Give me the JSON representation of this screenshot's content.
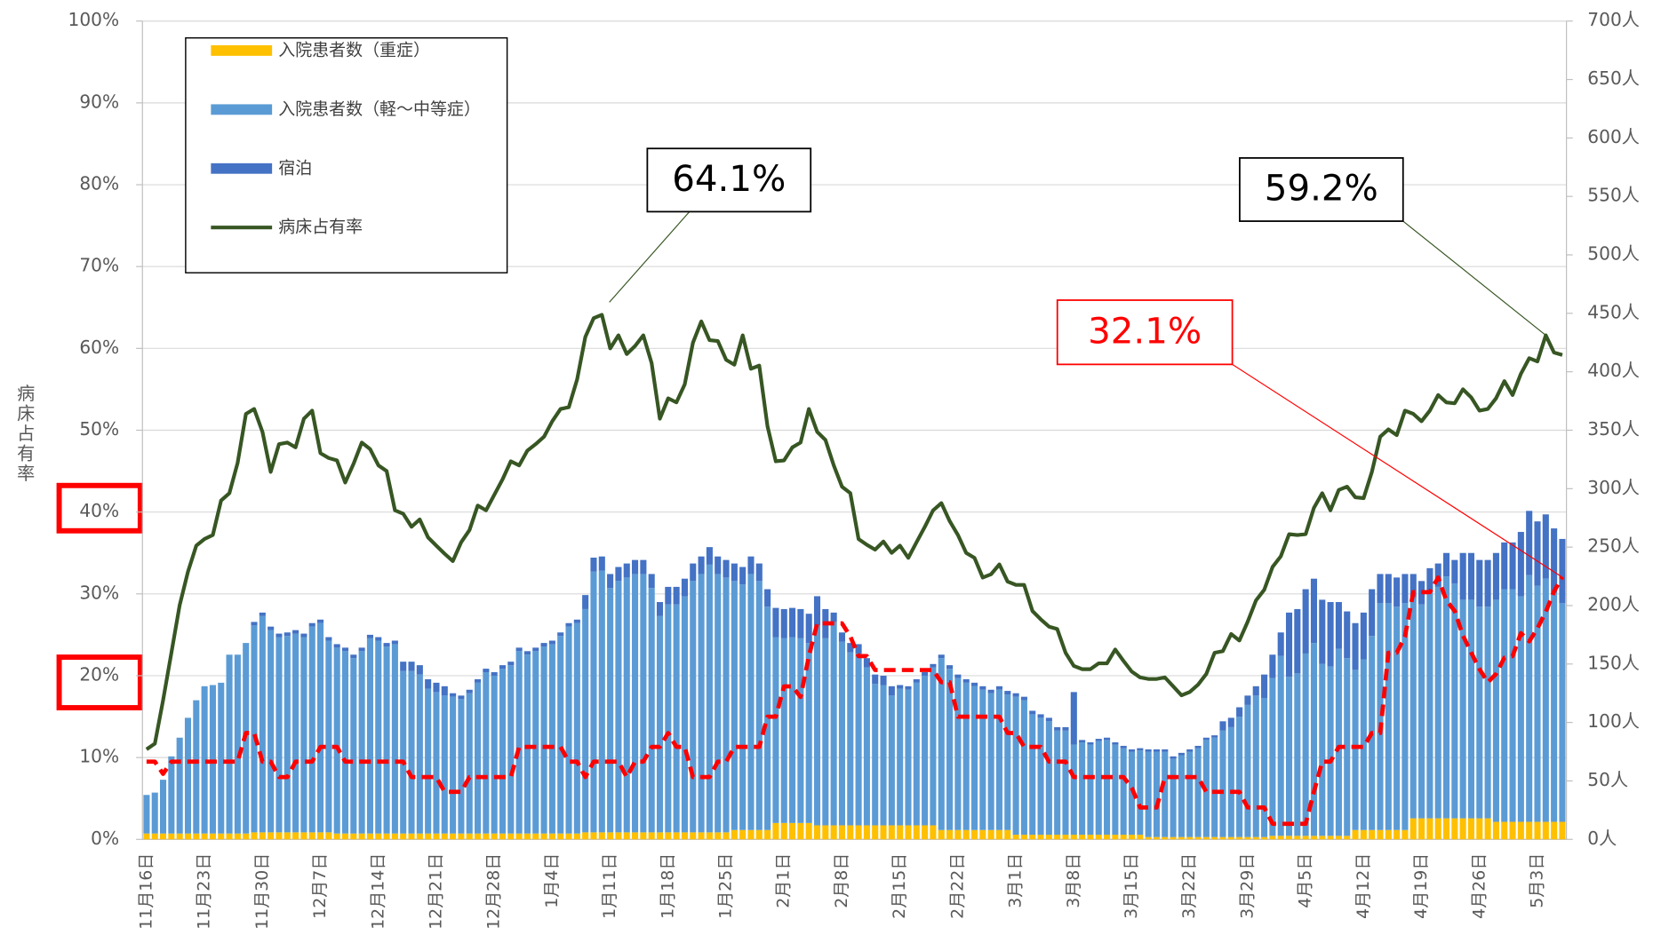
{
  "chart_data": {
    "type": "bar",
    "y_label": "病床占有率",
    "categories": [
      "11月16日",
      null,
      null,
      null,
      null,
      null,
      null,
      "11月23日",
      null,
      null,
      null,
      null,
      null,
      null,
      "11月30日",
      null,
      null,
      null,
      null,
      null,
      null,
      "12月7日",
      null,
      null,
      null,
      null,
      null,
      null,
      "12月14日",
      null,
      null,
      null,
      null,
      null,
      null,
      "12月21日",
      null,
      null,
      null,
      null,
      null,
      null,
      "12月28日",
      null,
      null,
      null,
      null,
      null,
      null,
      "1月4日",
      null,
      null,
      null,
      null,
      null,
      null,
      "1月11日",
      null,
      null,
      null,
      null,
      null,
      null,
      "1月18日",
      null,
      null,
      null,
      null,
      null,
      null,
      "1月25日",
      null,
      null,
      null,
      null,
      null,
      null,
      "2月1日",
      null,
      null,
      null,
      null,
      null,
      null,
      "2月8日",
      null,
      null,
      null,
      null,
      null,
      null,
      "2月15日",
      null,
      null,
      null,
      null,
      null,
      null,
      "2月22日",
      null,
      null,
      null,
      null,
      null,
      null,
      "3月1日",
      null,
      null,
      null,
      null,
      null,
      null,
      "3月8日",
      null,
      null,
      null,
      null,
      null,
      null,
      "3月15日",
      null,
      null,
      null,
      null,
      null,
      null,
      "3月22日",
      null,
      null,
      null,
      null,
      null,
      null,
      "3月29日",
      null,
      null,
      null,
      null,
      null,
      null,
      "4月5日",
      null,
      null,
      null,
      null,
      null,
      null,
      "4月12日",
      null,
      null,
      null,
      null,
      null,
      null,
      "4月19日",
      null,
      null,
      null,
      null,
      null,
      null,
      "4月26日",
      null,
      null,
      null,
      null,
      null,
      null,
      "5月3日",
      null,
      null,
      null
    ],
    "series": [
      {
        "name": "入院患者数（重症）",
        "type": "bar",
        "axis": "y2",
        "color": "#ffc000",
        "values": [
          5,
          5,
          5,
          5,
          5,
          5,
          5,
          5,
          5,
          5,
          5,
          5,
          5,
          6,
          6,
          6,
          6,
          6,
          6,
          6,
          6,
          6,
          6,
          5,
          5,
          5,
          5,
          5,
          5,
          5,
          5,
          5,
          5,
          5,
          5,
          5,
          5,
          5,
          5,
          5,
          5,
          5,
          5,
          5,
          5,
          5,
          5,
          5,
          5,
          5,
          5,
          5,
          5,
          6,
          6,
          6,
          6,
          6,
          6,
          6,
          6,
          6,
          6,
          6,
          6,
          6,
          6,
          6,
          6,
          6,
          6,
          8,
          8,
          8,
          8,
          8,
          14,
          14,
          14,
          14,
          14,
          12,
          12,
          12,
          12,
          12,
          12,
          12,
          12,
          12,
          12,
          12,
          12,
          12,
          12,
          12,
          8,
          8,
          8,
          8,
          8,
          8,
          8,
          8,
          8,
          4,
          4,
          4,
          4,
          4,
          4,
          4,
          4,
          4,
          4,
          4,
          4,
          4,
          4,
          4,
          4,
          2,
          2,
          2,
          2,
          2,
          2,
          2,
          2,
          2,
          2,
          2,
          2,
          2,
          2,
          2,
          3,
          3,
          3,
          3,
          3,
          3,
          3,
          3,
          3,
          3,
          8,
          8,
          8,
          8,
          8,
          8,
          8,
          18,
          18,
          18,
          18,
          18,
          18,
          18,
          18,
          18,
          18,
          15,
          15,
          15,
          15,
          15,
          15,
          15,
          15,
          15
        ]
      },
      {
        "name": "入院患者数（軽～中等症）",
        "type": "bar",
        "axis": "y2",
        "color": "#5b9bd5",
        "values": [
          33,
          35,
          46,
          66,
          82,
          99,
          114,
          126,
          127,
          129,
          153,
          153,
          163,
          177,
          185,
          173,
          167,
          168,
          170,
          167,
          176,
          179,
          164,
          159,
          156,
          150,
          156,
          167,
          165,
          160,
          162,
          139,
          139,
          136,
          124,
          121,
          118,
          117,
          115,
          120,
          129,
          138,
          135,
          141,
          144,
          156,
          153,
          156,
          160,
          162,
          169,
          177,
          180,
          191,
          223,
          224,
          209,
          215,
          218,
          221,
          221,
          209,
          185,
          195,
          195,
          202,
          215,
          221,
          229,
          221,
          218,
          213,
          210,
          219,
          213,
          191,
          159,
          158,
          159,
          158,
          154,
          171,
          160,
          174,
          157,
          148,
          147,
          135,
          121,
          120,
          111,
          117,
          116,
          122,
          128,
          135,
          147,
          138,
          130,
          126,
          123,
          120,
          117,
          120,
          116,
          118,
          115,
          103,
          100,
          97,
          89,
          89,
          77,
          79,
          77,
          80,
          81,
          77,
          74,
          71,
          72,
          73,
          73,
          73,
          67,
          70,
          73,
          76,
          83,
          85,
          91,
          94,
          103,
          113,
          121,
          119,
          135,
          154,
          136,
          139,
          156,
          165,
          147,
          145,
          160,
          152,
          137,
          146,
          166,
          194,
          194,
          191,
          194,
          189,
          183,
          194,
          198,
          207,
          201,
          187,
          187,
          181,
          181,
          190,
          199,
          199,
          193,
          211,
          202,
          208,
          196,
          187
        ]
      },
      {
        "name": "宿泊",
        "type": "bar",
        "axis": "y2",
        "color": "#4472c4",
        "values": [
          0,
          0,
          0,
          0,
          0,
          0,
          0,
          0,
          0,
          0,
          0,
          0,
          0,
          3,
          3,
          3,
          3,
          3,
          3,
          3,
          3,
          3,
          3,
          3,
          3,
          3,
          3,
          3,
          3,
          3,
          3,
          8,
          8,
          8,
          8,
          8,
          8,
          3,
          3,
          3,
          3,
          3,
          3,
          3,
          3,
          3,
          3,
          3,
          3,
          3,
          3,
          3,
          3,
          12,
          12,
          12,
          12,
          12,
          12,
          12,
          12,
          12,
          12,
          15,
          15,
          15,
          15,
          15,
          15,
          15,
          15,
          15,
          15,
          15,
          15,
          15,
          25,
          25,
          25,
          25,
          25,
          25,
          25,
          8,
          8,
          8,
          8,
          8,
          8,
          8,
          8,
          3,
          3,
          3,
          3,
          3,
          3,
          3,
          3,
          3,
          3,
          3,
          3,
          3,
          3,
          3,
          3,
          3,
          3,
          3,
          3,
          3,
          45,
          2,
          2,
          2,
          2,
          2,
          2,
          2,
          2,
          2,
          2,
          2,
          2,
          2,
          2,
          2,
          2,
          2,
          8,
          8,
          8,
          8,
          8,
          20,
          20,
          20,
          55,
          55,
          55,
          55,
          55,
          55,
          40,
          40,
          40,
          40,
          40,
          25,
          25,
          25,
          25,
          20,
          20,
          20,
          20,
          20,
          20,
          40,
          40,
          40,
          40,
          40,
          40,
          40,
          55,
          55,
          55,
          55,
          55,
          55
        ]
      },
      {
        "name": "病床占有率",
        "type": "line",
        "axis": "y",
        "color": "#375623",
        "values": [
          11,
          11.7,
          17,
          22.8,
          28.6,
          32.7,
          35.9,
          36.7,
          37.2,
          41.4,
          42.3,
          46,
          52,
          52.6,
          49.8,
          44.9,
          48.3,
          48.5,
          47.9,
          51.4,
          52.4,
          47.2,
          46.6,
          46.3,
          43.6,
          45.9,
          48.5,
          47.7,
          45.7,
          45,
          40.2,
          39.8,
          38.2,
          39.1,
          36.9,
          35.9,
          34.9,
          34,
          36.3,
          37.8,
          40.8,
          40.2,
          42.1,
          44,
          46.2,
          45.7,
          47.5,
          48.3,
          49.2,
          51.1,
          52.6,
          52.8,
          56.2,
          61.4,
          63.7,
          64.1,
          60,
          61.6,
          59.3,
          60.3,
          61.6,
          58.2,
          51.4,
          53.9,
          53.4,
          55.6,
          60.7,
          63.3,
          61,
          60.9,
          58.6,
          58,
          61.6,
          57.5,
          57.9,
          50.5,
          46.2,
          46.3,
          47.9,
          48.5,
          52.6,
          49.8,
          48.8,
          45.7,
          43.1,
          42.3,
          36.7,
          36,
          35.4,
          36.4,
          35,
          35.9,
          34.4,
          36.3,
          38.2,
          40.2,
          41.1,
          38.9,
          37.2,
          35,
          34.4,
          32,
          32.4,
          33.6,
          31.5,
          31.1,
          31.1,
          27.9,
          26.9,
          26,
          25.7,
          22.8,
          21.2,
          20.8,
          20.8,
          21.5,
          21.5,
          23.2,
          21.8,
          20.5,
          19.8,
          19.6,
          19.6,
          19.8,
          18.7,
          17.6,
          18,
          18.9,
          20.2,
          22.8,
          23,
          25.1,
          24.3,
          26.6,
          29.2,
          30.5,
          33.3,
          34.6,
          37.3,
          37.2,
          37.3,
          40.5,
          42.3,
          40.2,
          42.7,
          43.1,
          41.8,
          41.7,
          44.9,
          49.2,
          50.1,
          49.4,
          52.4,
          52,
          51.1,
          52.4,
          54.3,
          53.4,
          53.3,
          55,
          54,
          52.4,
          52.6,
          53.9,
          56,
          54.3,
          56.9,
          58.8,
          58.4,
          61.6,
          59.5,
          59.2
        ]
      },
      {
        "type": "line",
        "axis": "y",
        "color": "#ff0000",
        "dashed": true,
        "values": [
          9.5,
          9.5,
          8,
          9.5,
          9.5,
          9.5,
          9.5,
          9.5,
          9.5,
          9.5,
          9.5,
          9.5,
          13,
          13,
          9.5,
          9.5,
          7.6,
          7.6,
          9.5,
          9.5,
          9.5,
          11.3,
          11.3,
          11.3,
          9.5,
          9.5,
          9.5,
          9.5,
          9.5,
          9.5,
          9.5,
          9.5,
          7.6,
          7.6,
          7.6,
          7.6,
          5.8,
          5.8,
          5.8,
          7.6,
          7.6,
          7.6,
          7.6,
          7.6,
          7.6,
          11.3,
          11.3,
          11.3,
          11.3,
          11.3,
          11.3,
          9.5,
          9.5,
          7.6,
          9.5,
          9.5,
          9.5,
          9.5,
          7.6,
          9.5,
          9.5,
          11.3,
          11.3,
          13,
          11.3,
          11.3,
          7.6,
          7.6,
          7.6,
          9.5,
          9.5,
          11.3,
          11.3,
          11.3,
          11.3,
          15,
          15,
          18.7,
          18.7,
          17.4,
          22.4,
          26.4,
          26.4,
          26.4,
          26.4,
          24.8,
          22.4,
          22.4,
          20.7,
          20.7,
          20.7,
          20.7,
          20.7,
          20.7,
          20.7,
          20.7,
          19.2,
          19.2,
          15,
          15,
          15,
          15,
          15,
          15,
          13,
          13,
          11.3,
          11.3,
          11.3,
          9.5,
          9.5,
          9.5,
          7.6,
          7.6,
          7.6,
          7.6,
          7.6,
          7.6,
          7.6,
          6.3,
          3.9,
          3.9,
          3.9,
          7.6,
          7.6,
          7.6,
          7.6,
          7.6,
          5.8,
          5.8,
          5.8,
          5.8,
          5.8,
          3.9,
          3.9,
          3.9,
          1.9,
          1.9,
          1.9,
          1.9,
          1.9,
          5.8,
          9.5,
          9.5,
          11.3,
          11.3,
          11.3,
          11.3,
          13,
          13,
          22.8,
          22.8,
          24.8,
          30.2,
          30.2,
          30.2,
          32,
          29.2,
          27.9,
          24.9,
          22.8,
          20.8,
          19.2,
          20.2,
          22.2,
          22.4,
          25.2,
          24.2,
          25.8,
          27.8,
          30.3,
          32.1
        ]
      }
    ],
    "stacked": true,
    "ylim": [
      0,
      100
    ],
    "yticks": [
      {
        "value": 0,
        "label": "0%"
      },
      {
        "value": 10,
        "label": "10%"
      },
      {
        "value": 20,
        "label": "20%"
      },
      {
        "value": 30,
        "label": "30%"
      },
      {
        "value": 40,
        "label": "40%"
      },
      {
        "value": 50,
        "label": "50%"
      },
      {
        "value": 60,
        "label": "60%"
      },
      {
        "value": 70,
        "label": "70%"
      },
      {
        "value": 80,
        "label": "80%"
      },
      {
        "value": 90,
        "label": "90%"
      },
      {
        "value": 100,
        "label": "100%"
      }
    ],
    "y2lim": [
      0,
      700
    ],
    "y2ticks": [
      {
        "value": 0,
        "label": "0人"
      },
      {
        "value": 50,
        "label": "50人"
      },
      {
        "value": 100,
        "label": "100人"
      },
      {
        "value": 150,
        "label": "150人"
      },
      {
        "value": 200,
        "label": "200人"
      },
      {
        "value": 250,
        "label": "250人"
      },
      {
        "value": 300,
        "label": "300人"
      },
      {
        "value": 350,
        "label": "350人"
      },
      {
        "value": 400,
        "label": "400人"
      },
      {
        "value": 450,
        "label": "450人"
      },
      {
        "value": 500,
        "label": "500人"
      },
      {
        "value": 550,
        "label": "550人"
      },
      {
        "value": 600,
        "label": "600人"
      },
      {
        "value": 650,
        "label": "650人"
      },
      {
        "value": 700,
        "label": "700人"
      }
    ],
    "grid": true,
    "legend": "upper left",
    "annotations": [
      {
        "text": "64.1%",
        "color": "#000000"
      },
      {
        "text": "59.2%",
        "color": "#000000"
      },
      {
        "text": "32.1%",
        "color": "#ff0000"
      }
    ]
  }
}
